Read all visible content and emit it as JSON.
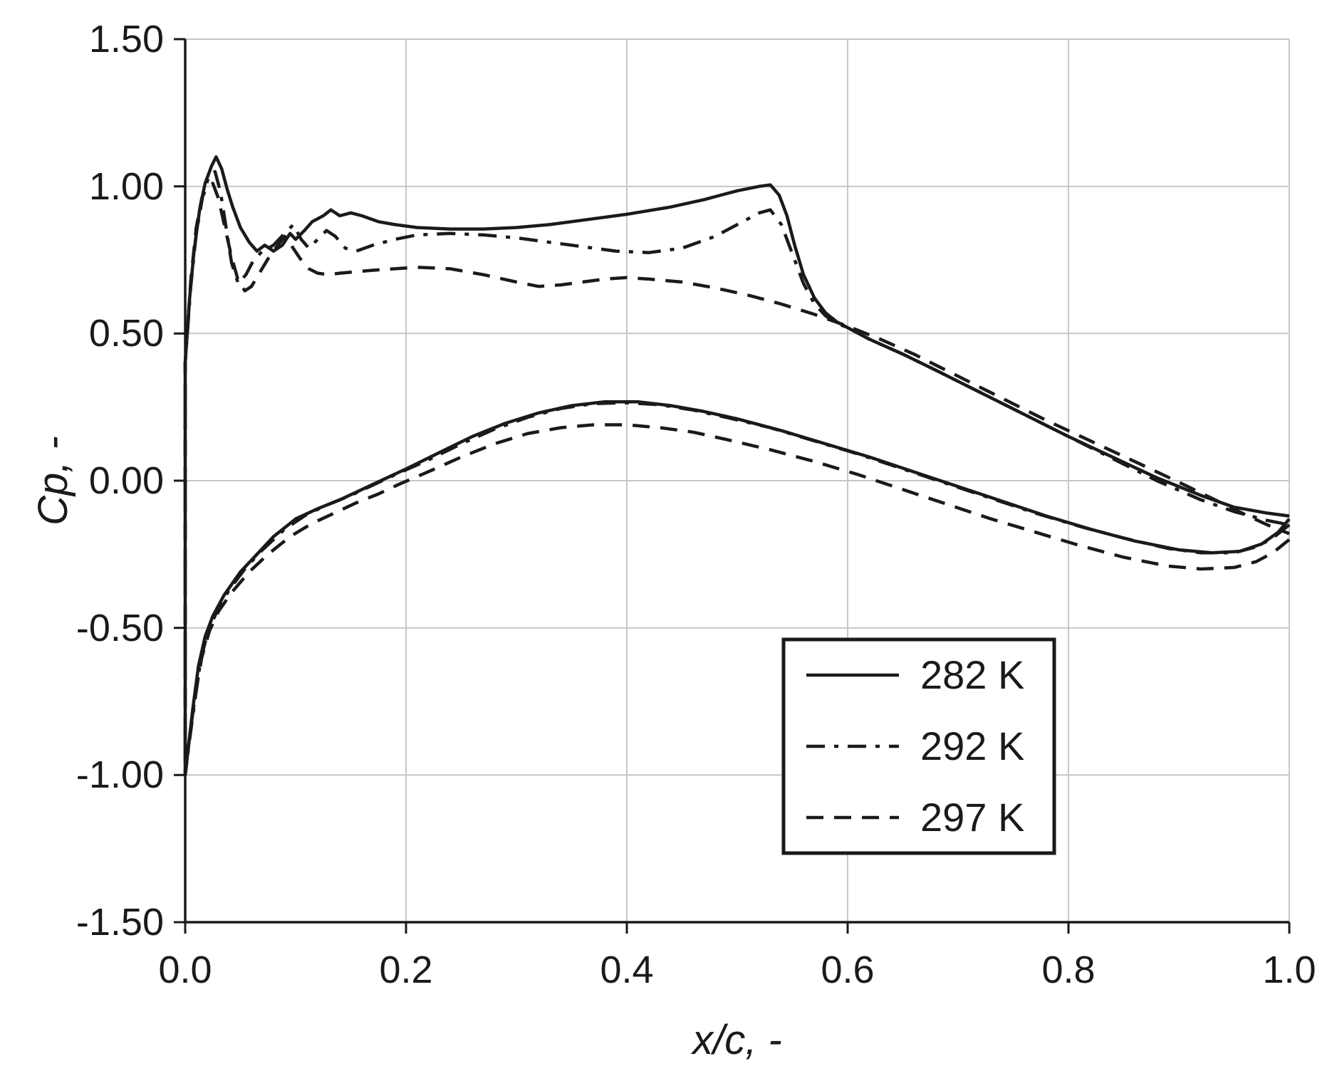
{
  "chart_data": {
    "type": "line",
    "title": "",
    "xlabel": "x/c, -",
    "ylabel": "Cp, -",
    "xlim": [
      0,
      1
    ],
    "ylim": [
      -1.5,
      1.5
    ],
    "grid": true,
    "x_ticks": [
      0,
      0.2,
      0.4,
      0.6,
      0.8,
      1.0
    ],
    "x_tick_labels": [
      "0.0",
      "0.2",
      "0.4",
      "0.6",
      "0.8",
      "1.0"
    ],
    "y_ticks": [
      1.5,
      1.0,
      0.5,
      0.0,
      -0.5,
      -1.0,
      -1.5
    ],
    "y_tick_labels": [
      "1.50",
      "1.00",
      "0.50",
      "0.00",
      "-0.50",
      "-1.00",
      "-1.50"
    ],
    "colors": {
      "line": "#1a1a1a",
      "grid": "#c6c6c6",
      "background": "#ffffff"
    },
    "legend": {
      "position": "lower-right",
      "entries": [
        {
          "label": "282 K",
          "style": "solid"
        },
        {
          "label": "292 K",
          "style": "dashdot"
        },
        {
          "label": "297 K",
          "style": "dashed"
        }
      ]
    },
    "series": [
      {
        "name": "282 K",
        "style": "solid",
        "upper": [
          [
            0,
            0.4
          ],
          [
            0.004,
            0.62
          ],
          [
            0.008,
            0.78
          ],
          [
            0.013,
            0.92
          ],
          [
            0.018,
            1.01
          ],
          [
            0.024,
            1.07
          ],
          [
            0.028,
            1.1
          ],
          [
            0.033,
            1.06
          ],
          [
            0.038,
            0.99
          ],
          [
            0.043,
            0.93
          ],
          [
            0.05,
            0.86
          ],
          [
            0.058,
            0.81
          ],
          [
            0.065,
            0.78
          ],
          [
            0.072,
            0.8
          ],
          [
            0.08,
            0.78
          ],
          [
            0.088,
            0.8
          ],
          [
            0.095,
            0.84
          ],
          [
            0.1,
            0.82
          ],
          [
            0.108,
            0.85
          ],
          [
            0.115,
            0.88
          ],
          [
            0.125,
            0.9
          ],
          [
            0.132,
            0.92
          ],
          [
            0.14,
            0.9
          ],
          [
            0.15,
            0.91
          ],
          [
            0.16,
            0.9
          ],
          [
            0.175,
            0.88
          ],
          [
            0.19,
            0.87
          ],
          [
            0.21,
            0.86
          ],
          [
            0.24,
            0.855
          ],
          [
            0.27,
            0.855
          ],
          [
            0.3,
            0.86
          ],
          [
            0.33,
            0.87
          ],
          [
            0.36,
            0.885
          ],
          [
            0.4,
            0.905
          ],
          [
            0.44,
            0.93
          ],
          [
            0.47,
            0.955
          ],
          [
            0.5,
            0.985
          ],
          [
            0.52,
            1.0
          ],
          [
            0.53,
            1.005
          ],
          [
            0.538,
            0.97
          ],
          [
            0.545,
            0.9
          ],
          [
            0.552,
            0.8
          ],
          [
            0.56,
            0.7
          ],
          [
            0.57,
            0.62
          ],
          [
            0.58,
            0.57
          ],
          [
            0.59,
            0.54
          ],
          [
            0.6,
            0.52
          ],
          [
            0.62,
            0.48
          ],
          [
            0.65,
            0.43
          ],
          [
            0.68,
            0.375
          ],
          [
            0.72,
            0.3
          ],
          [
            0.76,
            0.225
          ],
          [
            0.8,
            0.15
          ],
          [
            0.84,
            0.08
          ],
          [
            0.88,
            0.01
          ],
          [
            0.92,
            -0.05
          ],
          [
            0.95,
            -0.09
          ],
          [
            0.98,
            -0.11
          ],
          [
            1.0,
            -0.12
          ]
        ],
        "lower": [
          [
            0,
            -1.0
          ],
          [
            0.003,
            -0.9
          ],
          [
            0.007,
            -0.77
          ],
          [
            0.012,
            -0.63
          ],
          [
            0.018,
            -0.53
          ],
          [
            0.025,
            -0.46
          ],
          [
            0.035,
            -0.39
          ],
          [
            0.05,
            -0.31
          ],
          [
            0.065,
            -0.25
          ],
          [
            0.08,
            -0.19
          ],
          [
            0.1,
            -0.13
          ],
          [
            0.12,
            -0.095
          ],
          [
            0.14,
            -0.065
          ],
          [
            0.16,
            -0.03
          ],
          [
            0.18,
            0.005
          ],
          [
            0.2,
            0.04
          ],
          [
            0.23,
            0.095
          ],
          [
            0.26,
            0.15
          ],
          [
            0.29,
            0.195
          ],
          [
            0.32,
            0.23
          ],
          [
            0.35,
            0.255
          ],
          [
            0.38,
            0.268
          ],
          [
            0.41,
            0.268
          ],
          [
            0.44,
            0.255
          ],
          [
            0.47,
            0.235
          ],
          [
            0.5,
            0.21
          ],
          [
            0.54,
            0.17
          ],
          [
            0.58,
            0.125
          ],
          [
            0.62,
            0.08
          ],
          [
            0.66,
            0.03
          ],
          [
            0.7,
            -0.02
          ],
          [
            0.74,
            -0.07
          ],
          [
            0.78,
            -0.12
          ],
          [
            0.82,
            -0.165
          ],
          [
            0.86,
            -0.205
          ],
          [
            0.9,
            -0.235
          ],
          [
            0.93,
            -0.245
          ],
          [
            0.955,
            -0.24
          ],
          [
            0.975,
            -0.215
          ],
          [
            0.99,
            -0.175
          ],
          [
            1.0,
            -0.13
          ]
        ]
      },
      {
        "name": "292 K",
        "style": "dashdot",
        "upper": [
          [
            0,
            0.4
          ],
          [
            0.005,
            0.66
          ],
          [
            0.01,
            0.84
          ],
          [
            0.016,
            0.97
          ],
          [
            0.022,
            1.04
          ],
          [
            0.027,
            1.05
          ],
          [
            0.032,
            0.98
          ],
          [
            0.037,
            0.86
          ],
          [
            0.042,
            0.74
          ],
          [
            0.048,
            0.67
          ],
          [
            0.055,
            0.7
          ],
          [
            0.062,
            0.75
          ],
          [
            0.07,
            0.78
          ],
          [
            0.08,
            0.8
          ],
          [
            0.09,
            0.84
          ],
          [
            0.098,
            0.87
          ],
          [
            0.105,
            0.82
          ],
          [
            0.112,
            0.79
          ],
          [
            0.12,
            0.82
          ],
          [
            0.128,
            0.85
          ],
          [
            0.136,
            0.83
          ],
          [
            0.145,
            0.79
          ],
          [
            0.155,
            0.78
          ],
          [
            0.17,
            0.8
          ],
          [
            0.19,
            0.82
          ],
          [
            0.21,
            0.835
          ],
          [
            0.24,
            0.84
          ],
          [
            0.27,
            0.835
          ],
          [
            0.3,
            0.825
          ],
          [
            0.33,
            0.81
          ],
          [
            0.36,
            0.795
          ],
          [
            0.39,
            0.78
          ],
          [
            0.42,
            0.775
          ],
          [
            0.45,
            0.79
          ],
          [
            0.48,
            0.83
          ],
          [
            0.5,
            0.87
          ],
          [
            0.52,
            0.91
          ],
          [
            0.53,
            0.92
          ],
          [
            0.54,
            0.87
          ],
          [
            0.55,
            0.77
          ],
          [
            0.56,
            0.67
          ],
          [
            0.57,
            0.6
          ],
          [
            0.58,
            0.56
          ],
          [
            0.59,
            0.535
          ],
          [
            0.6,
            0.52
          ],
          [
            0.62,
            0.48
          ],
          [
            0.65,
            0.43
          ],
          [
            0.68,
            0.375
          ],
          [
            0.72,
            0.3
          ],
          [
            0.76,
            0.225
          ],
          [
            0.8,
            0.15
          ],
          [
            0.84,
            0.075
          ],
          [
            0.88,
            0.0
          ],
          [
            0.92,
            -0.065
          ],
          [
            0.95,
            -0.105
          ],
          [
            0.98,
            -0.135
          ],
          [
            1.0,
            -0.15
          ]
        ],
        "lower": [
          [
            0,
            -1.0
          ],
          [
            0.004,
            -0.88
          ],
          [
            0.009,
            -0.74
          ],
          [
            0.014,
            -0.61
          ],
          [
            0.02,
            -0.52
          ],
          [
            0.028,
            -0.45
          ],
          [
            0.04,
            -0.37
          ],
          [
            0.055,
            -0.295
          ],
          [
            0.07,
            -0.235
          ],
          [
            0.09,
            -0.165
          ],
          [
            0.11,
            -0.115
          ],
          [
            0.13,
            -0.08
          ],
          [
            0.15,
            -0.05
          ],
          [
            0.17,
            -0.015
          ],
          [
            0.19,
            0.02
          ],
          [
            0.22,
            0.07
          ],
          [
            0.25,
            0.125
          ],
          [
            0.28,
            0.175
          ],
          [
            0.31,
            0.215
          ],
          [
            0.34,
            0.245
          ],
          [
            0.37,
            0.262
          ],
          [
            0.4,
            0.265
          ],
          [
            0.43,
            0.258
          ],
          [
            0.46,
            0.24
          ],
          [
            0.49,
            0.215
          ],
          [
            0.53,
            0.18
          ],
          [
            0.57,
            0.135
          ],
          [
            0.61,
            0.09
          ],
          [
            0.65,
            0.04
          ],
          [
            0.69,
            -0.01
          ],
          [
            0.73,
            -0.06
          ],
          [
            0.77,
            -0.11
          ],
          [
            0.81,
            -0.155
          ],
          [
            0.85,
            -0.195
          ],
          [
            0.89,
            -0.23
          ],
          [
            0.92,
            -0.245
          ],
          [
            0.95,
            -0.245
          ],
          [
            0.97,
            -0.225
          ],
          [
            0.985,
            -0.195
          ],
          [
            1.0,
            -0.15
          ]
        ]
      },
      {
        "name": "297 K",
        "style": "dashed",
        "upper": [
          [
            0,
            0.4
          ],
          [
            0.005,
            0.68
          ],
          [
            0.01,
            0.86
          ],
          [
            0.015,
            0.96
          ],
          [
            0.02,
            1.0
          ],
          [
            0.025,
            1.01
          ],
          [
            0.03,
            0.96
          ],
          [
            0.036,
            0.86
          ],
          [
            0.042,
            0.76
          ],
          [
            0.048,
            0.68
          ],
          [
            0.054,
            0.645
          ],
          [
            0.06,
            0.66
          ],
          [
            0.068,
            0.71
          ],
          [
            0.076,
            0.76
          ],
          [
            0.084,
            0.8
          ],
          [
            0.09,
            0.83
          ],
          [
            0.096,
            0.8
          ],
          [
            0.104,
            0.755
          ],
          [
            0.112,
            0.72
          ],
          [
            0.12,
            0.705
          ],
          [
            0.13,
            0.7
          ],
          [
            0.14,
            0.705
          ],
          [
            0.155,
            0.71
          ],
          [
            0.17,
            0.715
          ],
          [
            0.19,
            0.72
          ],
          [
            0.21,
            0.725
          ],
          [
            0.24,
            0.72
          ],
          [
            0.27,
            0.7
          ],
          [
            0.3,
            0.675
          ],
          [
            0.32,
            0.66
          ],
          [
            0.34,
            0.665
          ],
          [
            0.36,
            0.675
          ],
          [
            0.38,
            0.685
          ],
          [
            0.4,
            0.69
          ],
          [
            0.42,
            0.685
          ],
          [
            0.45,
            0.675
          ],
          [
            0.48,
            0.655
          ],
          [
            0.51,
            0.63
          ],
          [
            0.54,
            0.6
          ],
          [
            0.57,
            0.565
          ],
          [
            0.6,
            0.525
          ],
          [
            0.63,
            0.48
          ],
          [
            0.66,
            0.43
          ],
          [
            0.7,
            0.355
          ],
          [
            0.74,
            0.28
          ],
          [
            0.78,
            0.205
          ],
          [
            0.82,
            0.135
          ],
          [
            0.86,
            0.065
          ],
          [
            0.9,
            -0.005
          ],
          [
            0.93,
            -0.06
          ],
          [
            0.96,
            -0.115
          ],
          [
            0.98,
            -0.15
          ],
          [
            1.0,
            -0.18
          ]
        ],
        "lower": [
          [
            0,
            -1.0
          ],
          [
            0.004,
            -0.87
          ],
          [
            0.009,
            -0.73
          ],
          [
            0.015,
            -0.6
          ],
          [
            0.022,
            -0.51
          ],
          [
            0.03,
            -0.445
          ],
          [
            0.042,
            -0.38
          ],
          [
            0.058,
            -0.31
          ],
          [
            0.075,
            -0.25
          ],
          [
            0.095,
            -0.19
          ],
          [
            0.115,
            -0.145
          ],
          [
            0.135,
            -0.11
          ],
          [
            0.155,
            -0.075
          ],
          [
            0.175,
            -0.045
          ],
          [
            0.195,
            -0.01
          ],
          [
            0.22,
            0.03
          ],
          [
            0.25,
            0.08
          ],
          [
            0.28,
            0.125
          ],
          [
            0.31,
            0.16
          ],
          [
            0.34,
            0.18
          ],
          [
            0.37,
            0.19
          ],
          [
            0.4,
            0.19
          ],
          [
            0.43,
            0.18
          ],
          [
            0.46,
            0.165
          ],
          [
            0.49,
            0.14
          ],
          [
            0.53,
            0.105
          ],
          [
            0.57,
            0.065
          ],
          [
            0.61,
            0.02
          ],
          [
            0.65,
            -0.03
          ],
          [
            0.69,
            -0.08
          ],
          [
            0.73,
            -0.13
          ],
          [
            0.77,
            -0.175
          ],
          [
            0.81,
            -0.22
          ],
          [
            0.85,
            -0.26
          ],
          [
            0.89,
            -0.29
          ],
          [
            0.92,
            -0.3
          ],
          [
            0.95,
            -0.295
          ],
          [
            0.97,
            -0.275
          ],
          [
            0.985,
            -0.245
          ],
          [
            1.0,
            -0.2
          ]
        ]
      }
    ]
  }
}
